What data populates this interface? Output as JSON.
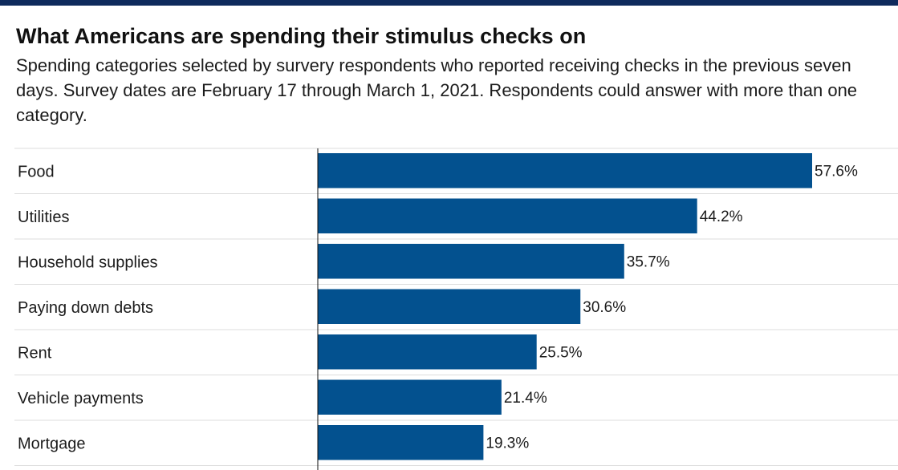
{
  "colors": {
    "top_bar": "#0e2a5c",
    "bar": "#03518f",
    "gridline": "#dcdcdc",
    "axis": "#111111"
  },
  "chart_data": {
    "type": "bar",
    "orientation": "horizontal",
    "title": "What Americans are spending their stimulus checks on",
    "subtitle": "Spending categories selected by survery respondents who reported receiving checks in the previous seven days. Survey dates are February 17 through March 1, 2021. Respondents could answer with more than one category.",
    "categories": [
      "Food",
      "Utilities",
      "Household supplies",
      "Paying down debts",
      "Rent",
      "Vehicle payments",
      "Mortgage"
    ],
    "values": [
      57.6,
      44.2,
      35.7,
      30.6,
      25.5,
      21.4,
      19.3
    ],
    "value_labels": [
      "57.6%",
      "44.2%",
      "35.7%",
      "30.6%",
      "25.5%",
      "21.4%",
      "19.3%"
    ],
    "xlim": [
      0,
      60
    ],
    "grid": false,
    "legend": "none"
  }
}
